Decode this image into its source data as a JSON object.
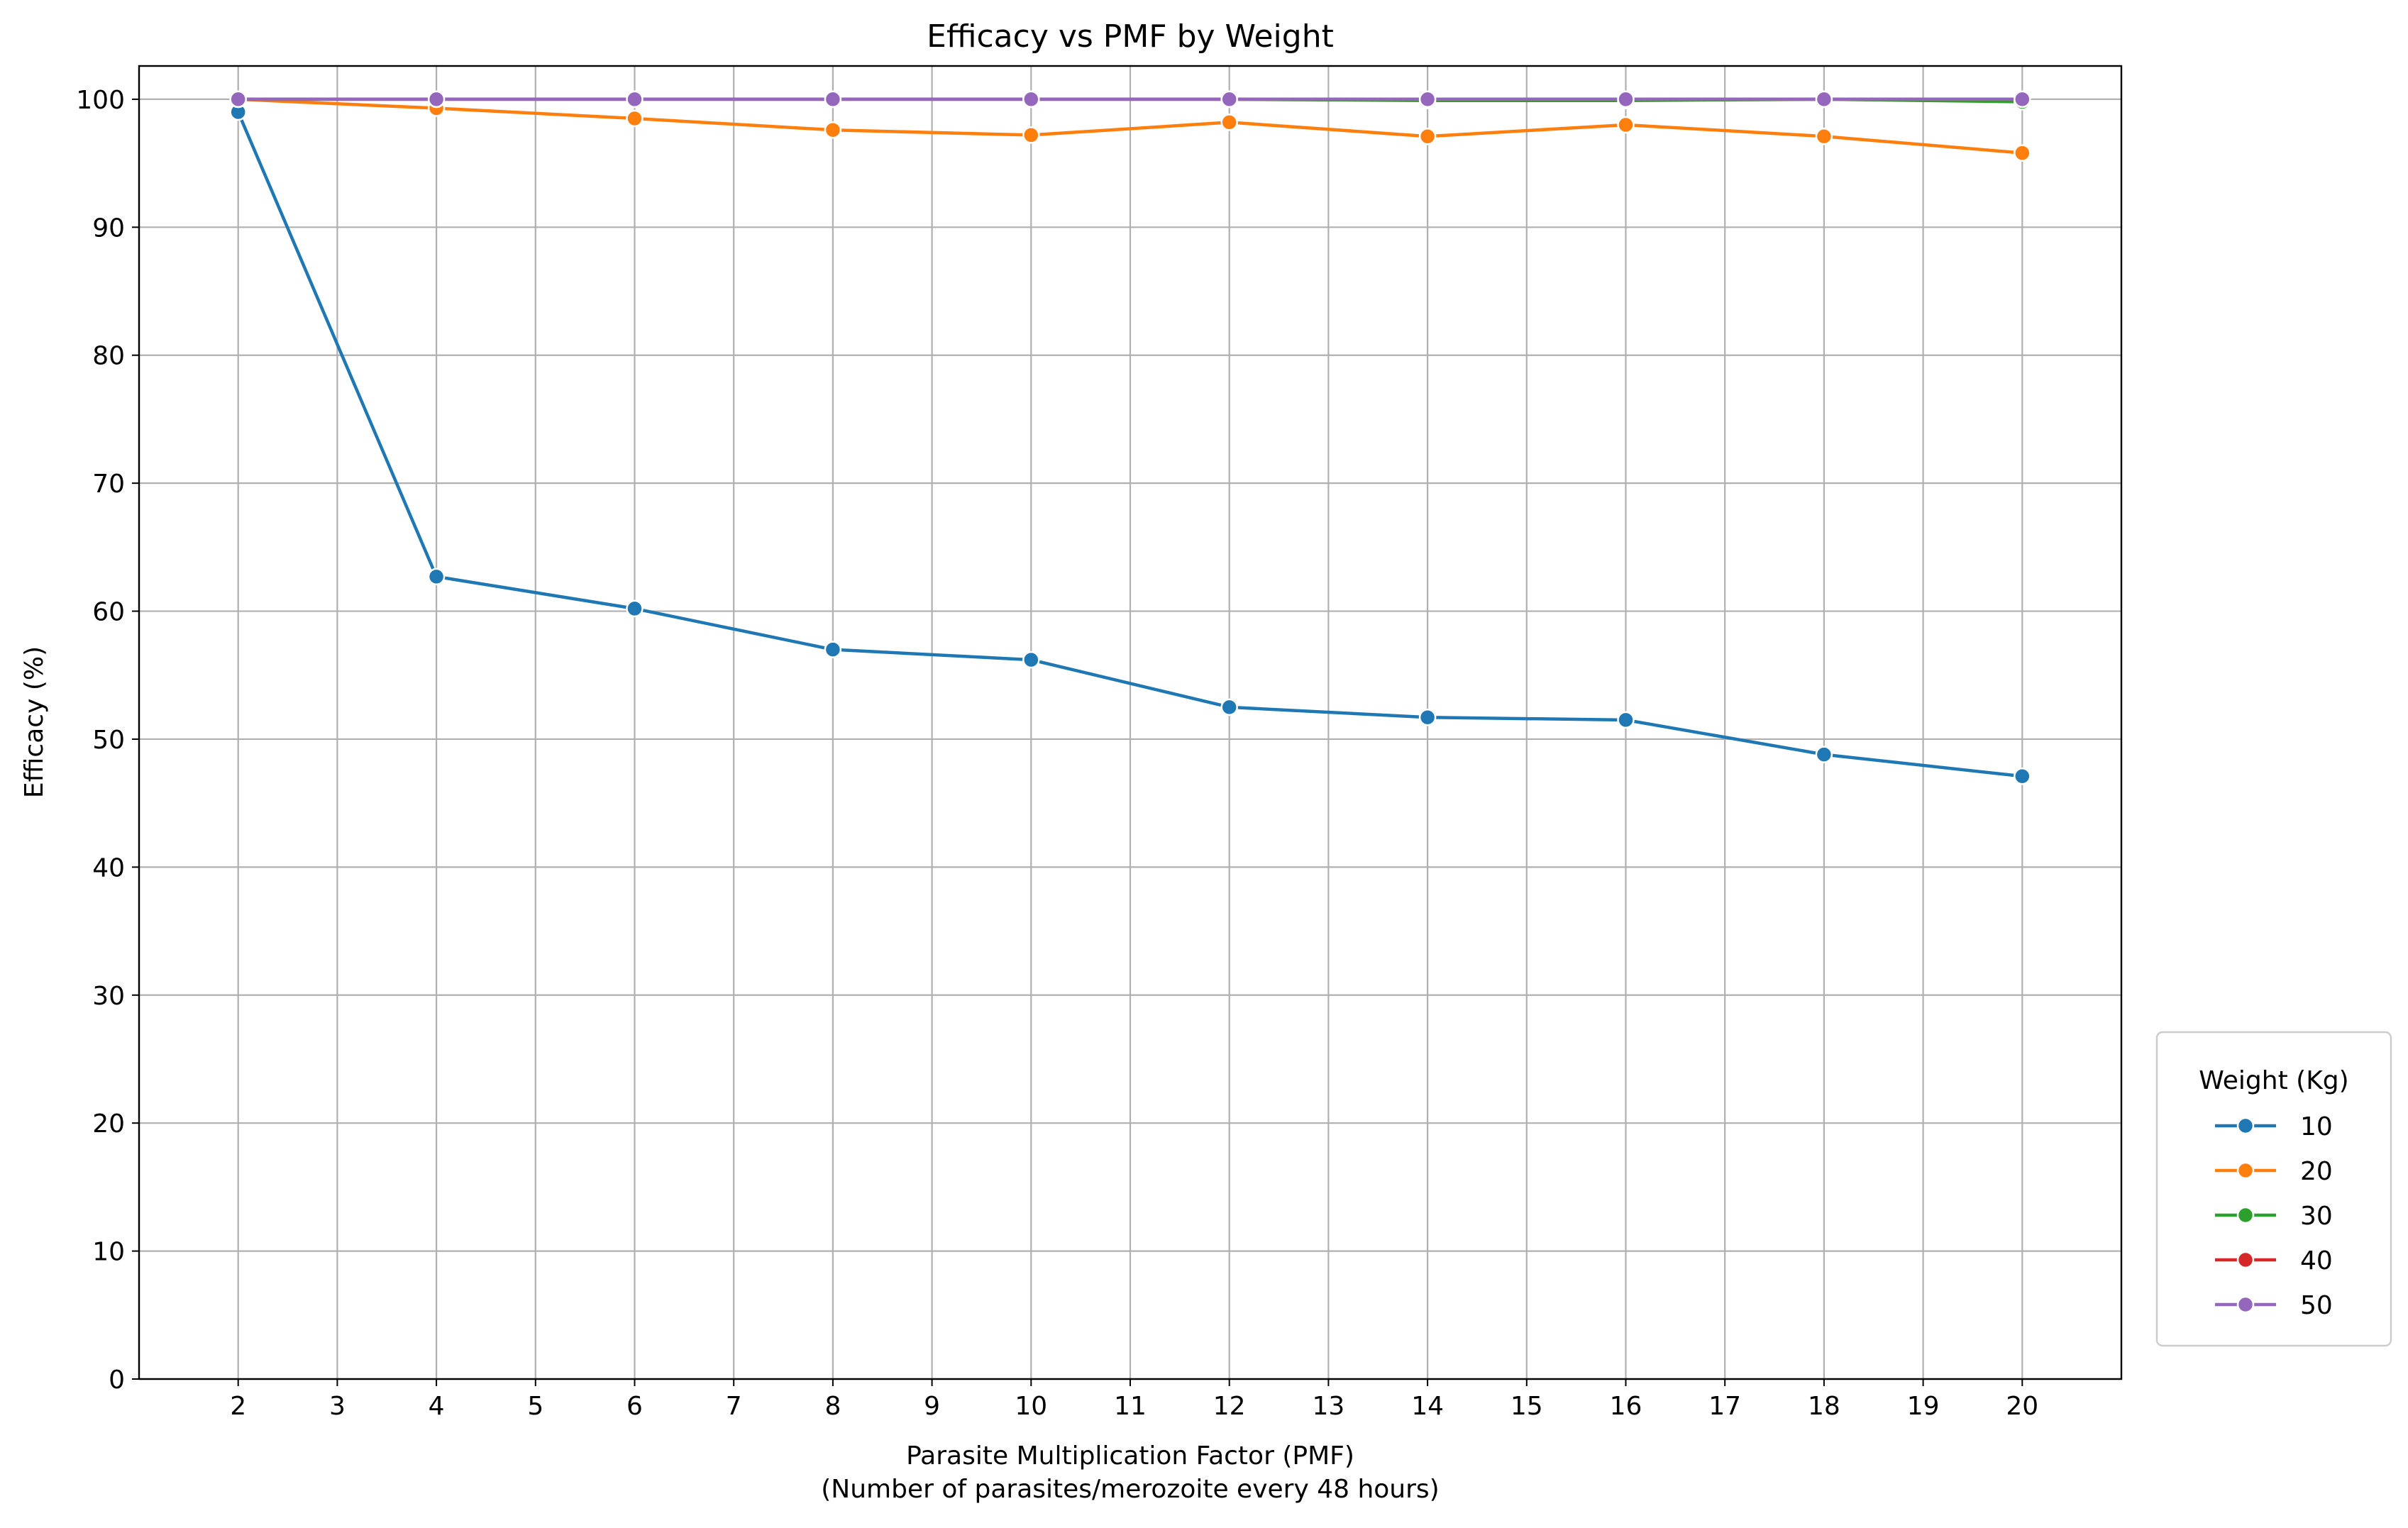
{
  "chart_data": {
    "type": "line",
    "title": "Efficacy vs PMF by Weight",
    "xlabel": "Parasite Multiplication Factor (PMF)",
    "xlabel_sub": "(Number of parasites/merozoite every 48 hours)",
    "ylabel": "Efficacy (%)",
    "x_ticks": [
      2,
      3,
      4,
      5,
      6,
      7,
      8,
      9,
      10,
      11,
      12,
      13,
      14,
      15,
      16,
      17,
      18,
      19,
      20
    ],
    "y_ticks": [
      0,
      10,
      20,
      30,
      40,
      50,
      60,
      70,
      80,
      90,
      100
    ],
    "xlim": [
      1,
      21
    ],
    "ylim": [
      0,
      102.6
    ],
    "grid": true,
    "legend": {
      "title": "Weight (Kg)",
      "placement": "lower-right-outside"
    },
    "x": [
      2,
      4,
      6,
      8,
      10,
      12,
      14,
      16,
      18,
      20
    ],
    "series": [
      {
        "name": "10",
        "color": "#1f77b4",
        "values": [
          99.0,
          62.7,
          60.2,
          57.0,
          56.2,
          52.5,
          51.7,
          51.5,
          48.8,
          47.1
        ]
      },
      {
        "name": "20",
        "color": "#ff7f0e",
        "values": [
          100.0,
          99.3,
          98.5,
          97.6,
          97.2,
          98.2,
          97.1,
          98.0,
          97.1,
          95.8
        ]
      },
      {
        "name": "30",
        "color": "#2ca02c",
        "values": [
          100.0,
          100.0,
          100.0,
          100.0,
          100.0,
          100.0,
          99.9,
          99.9,
          100.0,
          99.8
        ]
      },
      {
        "name": "40",
        "color": "#d62728",
        "values": [
          100.0,
          100.0,
          100.0,
          100.0,
          100.0,
          100.0,
          100.0,
          100.0,
          100.0,
          100.0
        ]
      },
      {
        "name": "50",
        "color": "#9467bd",
        "values": [
          100.0,
          100.0,
          100.0,
          100.0,
          100.0,
          100.0,
          100.0,
          100.0,
          100.0,
          100.0
        ]
      }
    ]
  }
}
